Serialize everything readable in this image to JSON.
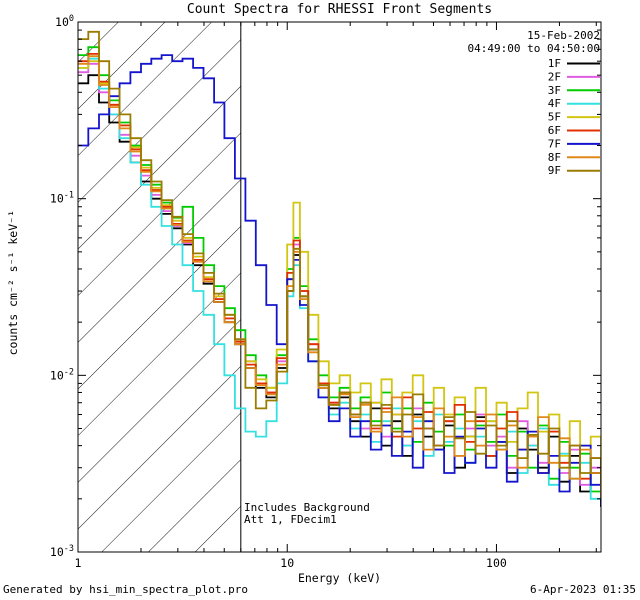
{
  "title": "Count Spectra for RHESSI Front Segments",
  "header": {
    "date": "15-Feb-2002",
    "time_range": "04:49:00 to 04:50:00"
  },
  "annotations": {
    "background_note": "Includes Background",
    "attenuator_note": "Att 1, FDecim1"
  },
  "footer": {
    "generated_by": "Generated by hsi_min_spectra_plot.pro",
    "timestamp": "6-Apr-2023 01:35"
  },
  "chart_data": {
    "type": "line",
    "mode": "steps",
    "title": "Count Spectra for RHESSI Front Segments",
    "xlabel": "Energy (keV)",
    "ylabel": "counts cm⁻² s⁻¹ keV⁻¹",
    "xscale": "log",
    "yscale": "log",
    "xlim": [
      1,
      316
    ],
    "ylim": [
      0.001,
      1.0
    ],
    "x_ticks": [
      1,
      10,
      100
    ],
    "y_tick_exponents": [
      -3,
      -2,
      -1,
      0
    ],
    "grid": false,
    "legend_position": "upper right",
    "hatched_region_kev": [
      1,
      6
    ],
    "x": [
      1.0,
      1.12,
      1.26,
      1.41,
      1.58,
      1.78,
      2.0,
      2.24,
      2.51,
      2.82,
      3.16,
      3.55,
      3.98,
      4.47,
      5.01,
      5.62,
      6.31,
      7.08,
      7.94,
      8.91,
      10.0,
      10.7,
      11.5,
      12.6,
      14.1,
      15.8,
      17.8,
      20.0,
      22.4,
      25.1,
      28.2,
      31.6,
      35.5,
      39.8,
      44.7,
      50.1,
      56.2,
      63.1,
      70.8,
      79.4,
      89.1,
      100,
      112,
      126,
      141,
      158,
      178,
      200,
      224,
      251,
      282,
      316
    ],
    "series": [
      {
        "name": "1F",
        "color": "#000000",
        "values": [
          0.45,
          0.5,
          0.35,
          0.27,
          0.21,
          0.16,
          0.125,
          0.1,
          0.082,
          0.068,
          0.055,
          0.042,
          0.033,
          0.026,
          0.02,
          0.015,
          0.011,
          0.0085,
          0.0075,
          0.011,
          0.03,
          0.048,
          0.028,
          0.014,
          0.0085,
          0.0065,
          0.0075,
          0.0055,
          0.0045,
          0.0065,
          0.004,
          0.0055,
          0.0035,
          0.006,
          0.0045,
          0.0038,
          0.0052,
          0.003,
          0.0045,
          0.0058,
          0.0035,
          0.0042,
          0.0028,
          0.005,
          0.0038,
          0.003,
          0.0045,
          0.0025,
          0.0035,
          0.0022,
          0.0028,
          0.0018
        ]
      },
      {
        "name": "2F",
        "color": "#e05ce0",
        "values": [
          0.52,
          0.58,
          0.4,
          0.3,
          0.23,
          0.175,
          0.135,
          0.105,
          0.085,
          0.07,
          0.056,
          0.044,
          0.034,
          0.027,
          0.021,
          0.016,
          0.012,
          0.009,
          0.008,
          0.012,
          0.035,
          0.055,
          0.03,
          0.015,
          0.009,
          0.007,
          0.008,
          0.006,
          0.005,
          0.007,
          0.0045,
          0.006,
          0.004,
          0.0065,
          0.005,
          0.004,
          0.0055,
          0.0035,
          0.005,
          0.006,
          0.004,
          0.0045,
          0.003,
          0.0055,
          0.004,
          0.0032,
          0.0048,
          0.0028,
          0.0038,
          0.0024,
          0.003,
          0.002
        ]
      },
      {
        "name": "3F",
        "color": "#00cc00",
        "values": [
          0.65,
          0.72,
          0.5,
          0.36,
          0.27,
          0.2,
          0.155,
          0.12,
          0.095,
          0.078,
          0.09,
          0.06,
          0.042,
          0.032,
          0.024,
          0.018,
          0.013,
          0.01,
          0.0085,
          0.013,
          0.04,
          0.06,
          0.032,
          0.016,
          0.01,
          0.0075,
          0.0085,
          0.0065,
          0.0075,
          0.0055,
          0.008,
          0.005,
          0.0065,
          0.0042,
          0.007,
          0.0048,
          0.004,
          0.006,
          0.0038,
          0.0052,
          0.0042,
          0.006,
          0.0035,
          0.0048,
          0.003,
          0.0052,
          0.0026,
          0.0042,
          0.003,
          0.0036,
          0.0022,
          0.0028
        ]
      },
      {
        "name": "4F",
        "color": "#35e0e0",
        "values": [
          0.55,
          0.62,
          0.42,
          0.3,
          0.22,
          0.16,
          0.12,
          0.09,
          0.07,
          0.055,
          0.042,
          0.03,
          0.022,
          0.015,
          0.01,
          0.0065,
          0.0048,
          0.0045,
          0.0055,
          0.009,
          0.028,
          0.042,
          0.024,
          0.012,
          0.0075,
          0.006,
          0.007,
          0.005,
          0.006,
          0.0042,
          0.0055,
          0.0065,
          0.004,
          0.0055,
          0.0035,
          0.006,
          0.0042,
          0.005,
          0.0032,
          0.0045,
          0.0055,
          0.0038,
          0.0048,
          0.0028,
          0.004,
          0.005,
          0.0024,
          0.0036,
          0.0026,
          0.0032,
          0.002,
          0.0025
        ]
      },
      {
        "name": "5F",
        "color": "#d2c613",
        "values": [
          0.55,
          0.6,
          0.45,
          0.34,
          0.26,
          0.195,
          0.15,
          0.115,
          0.092,
          0.075,
          0.06,
          0.047,
          0.036,
          0.028,
          0.022,
          0.016,
          0.012,
          0.0095,
          0.0085,
          0.014,
          0.055,
          0.095,
          0.05,
          0.022,
          0.012,
          0.009,
          0.01,
          0.008,
          0.009,
          0.007,
          0.0095,
          0.006,
          0.008,
          0.01,
          0.0055,
          0.0085,
          0.006,
          0.0075,
          0.0045,
          0.0085,
          0.0055,
          0.007,
          0.0042,
          0.0065,
          0.008,
          0.0048,
          0.006,
          0.0035,
          0.0055,
          0.004,
          0.0045,
          0.003
        ]
      },
      {
        "name": "6F",
        "color": "#e03000",
        "values": [
          0.6,
          0.66,
          0.46,
          0.34,
          0.26,
          0.19,
          0.145,
          0.112,
          0.09,
          0.072,
          0.058,
          0.045,
          0.035,
          0.027,
          0.021,
          0.0155,
          0.0115,
          0.009,
          0.008,
          0.0125,
          0.038,
          0.058,
          0.03,
          0.015,
          0.009,
          0.007,
          0.008,
          0.006,
          0.007,
          0.005,
          0.0065,
          0.0045,
          0.0075,
          0.005,
          0.0062,
          0.004,
          0.0055,
          0.0068,
          0.0042,
          0.0055,
          0.0035,
          0.005,
          0.0062,
          0.0038,
          0.0045,
          0.0028,
          0.0048,
          0.0032,
          0.004,
          0.0026,
          0.0034,
          0.0022
        ]
      },
      {
        "name": "7F",
        "color": "#1414cc",
        "values": [
          0.2,
          0.25,
          0.3,
          0.38,
          0.45,
          0.52,
          0.58,
          0.62,
          0.65,
          0.6,
          0.62,
          0.55,
          0.48,
          0.35,
          0.22,
          0.13,
          0.075,
          0.042,
          0.025,
          0.015,
          0.035,
          0.045,
          0.025,
          0.012,
          0.0075,
          0.0055,
          0.0065,
          0.0045,
          0.0055,
          0.0038,
          0.0052,
          0.0035,
          0.0048,
          0.003,
          0.0055,
          0.0038,
          0.0028,
          0.0045,
          0.0032,
          0.005,
          0.003,
          0.0042,
          0.0025,
          0.0038,
          0.0048,
          0.0028,
          0.0035,
          0.0022,
          0.0032,
          0.004,
          0.0024,
          0.0018
        ]
      },
      {
        "name": "8F",
        "color": "#e08818",
        "values": [
          0.58,
          0.64,
          0.44,
          0.33,
          0.25,
          0.185,
          0.142,
          0.11,
          0.088,
          0.071,
          0.057,
          0.044,
          0.034,
          0.026,
          0.02,
          0.015,
          0.011,
          0.0088,
          0.0078,
          0.0115,
          0.032,
          0.05,
          0.027,
          0.0135,
          0.0085,
          0.0068,
          0.0078,
          0.0058,
          0.0068,
          0.0048,
          0.0062,
          0.0075,
          0.0045,
          0.0058,
          0.0038,
          0.0065,
          0.0045,
          0.0035,
          0.0055,
          0.004,
          0.006,
          0.0038,
          0.0052,
          0.003,
          0.0045,
          0.0058,
          0.0032,
          0.0044,
          0.0026,
          0.0038,
          0.0028,
          0.002
        ]
      },
      {
        "name": "9F",
        "color": "#9a7d00",
        "values": [
          0.8,
          0.88,
          0.6,
          0.42,
          0.3,
          0.22,
          0.165,
          0.125,
          0.098,
          0.079,
          0.063,
          0.049,
          0.038,
          0.029,
          0.022,
          0.016,
          0.0085,
          0.0065,
          0.0072,
          0.0105,
          0.03,
          0.052,
          0.028,
          0.014,
          0.0088,
          0.0068,
          0.008,
          0.006,
          0.007,
          0.0052,
          0.0068,
          0.0048,
          0.006,
          0.0078,
          0.005,
          0.004,
          0.0058,
          0.0044,
          0.0062,
          0.0036,
          0.0052,
          0.004,
          0.0055,
          0.0034,
          0.0046,
          0.0036,
          0.005,
          0.003,
          0.004,
          0.0028,
          0.0034,
          0.0024
        ]
      }
    ]
  }
}
